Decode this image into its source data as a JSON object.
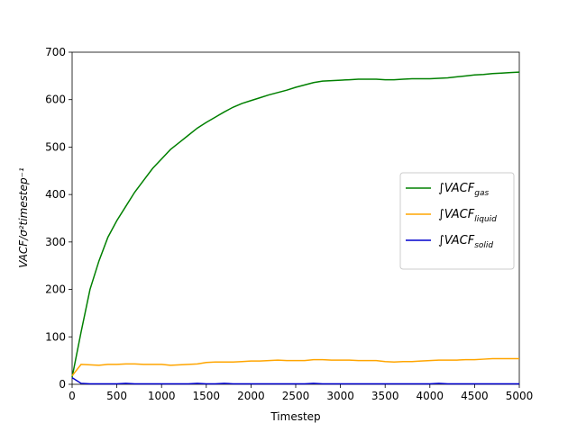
{
  "chart_data": {
    "type": "line",
    "xlabel": "Timestep",
    "ylabel": "VACF/σ²timestep⁻¹",
    "x": [
      0,
      100,
      200,
      300,
      400,
      500,
      600,
      700,
      800,
      900,
      1000,
      1100,
      1200,
      1300,
      1400,
      1500,
      1600,
      1700,
      1800,
      1900,
      2000,
      2100,
      2200,
      2300,
      2400,
      2500,
      2600,
      2700,
      2800,
      2900,
      3000,
      3100,
      3200,
      3300,
      3400,
      3500,
      3600,
      3700,
      3800,
      3900,
      4000,
      4100,
      4200,
      4300,
      4400,
      4500,
      4600,
      4700,
      4800,
      4900,
      5000
    ],
    "series": [
      {
        "name": "∫VACF",
        "subscript": "gas",
        "color": "#008000",
        "values": [
          15,
          110,
          200,
          260,
          310,
          345,
          375,
          405,
          430,
          455,
          475,
          495,
          510,
          525,
          540,
          552,
          563,
          574,
          584,
          592,
          598,
          604,
          610,
          615,
          620,
          626,
          631,
          636,
          639,
          640,
          641,
          642,
          643,
          643,
          643,
          642,
          642,
          643,
          644,
          644,
          644,
          645,
          646,
          648,
          650,
          652,
          653,
          655,
          656,
          657,
          658
        ]
      },
      {
        "name": "∫VACF",
        "subscript": "liquid",
        "color": "#ffa500",
        "values": [
          18,
          42,
          41,
          40,
          42,
          42,
          43,
          43,
          42,
          42,
          42,
          40,
          41,
          42,
          43,
          46,
          47,
          47,
          47,
          48,
          49,
          49,
          50,
          51,
          50,
          50,
          50,
          52,
          52,
          51,
          51,
          51,
          50,
          50,
          50,
          48,
          47,
          48,
          48,
          49,
          50,
          51,
          51,
          51,
          52,
          52,
          53,
          54,
          54,
          54,
          54
        ]
      },
      {
        "name": "∫VACF",
        "subscript": "solid",
        "color": "#0000cd",
        "values": [
          14,
          2,
          1,
          1,
          1,
          1,
          2,
          1,
          1,
          1,
          1,
          1,
          1,
          1,
          2,
          1,
          1,
          2,
          1,
          1,
          1,
          1,
          1,
          1,
          1,
          1,
          1,
          2,
          1,
          1,
          1,
          1,
          1,
          1,
          1,
          1,
          1,
          1,
          1,
          1,
          1,
          2,
          1,
          1,
          1,
          1,
          1,
          1,
          1,
          1,
          1
        ]
      }
    ],
    "xlim": [
      0,
      5000
    ],
    "xticks": [
      0,
      500,
      1000,
      1500,
      2000,
      2500,
      3000,
      3500,
      4000,
      4500,
      5000
    ],
    "ylim": [
      0,
      700
    ],
    "yticks": [
      0,
      100,
      200,
      300,
      400,
      500,
      600,
      700
    ],
    "legend": "right"
  }
}
